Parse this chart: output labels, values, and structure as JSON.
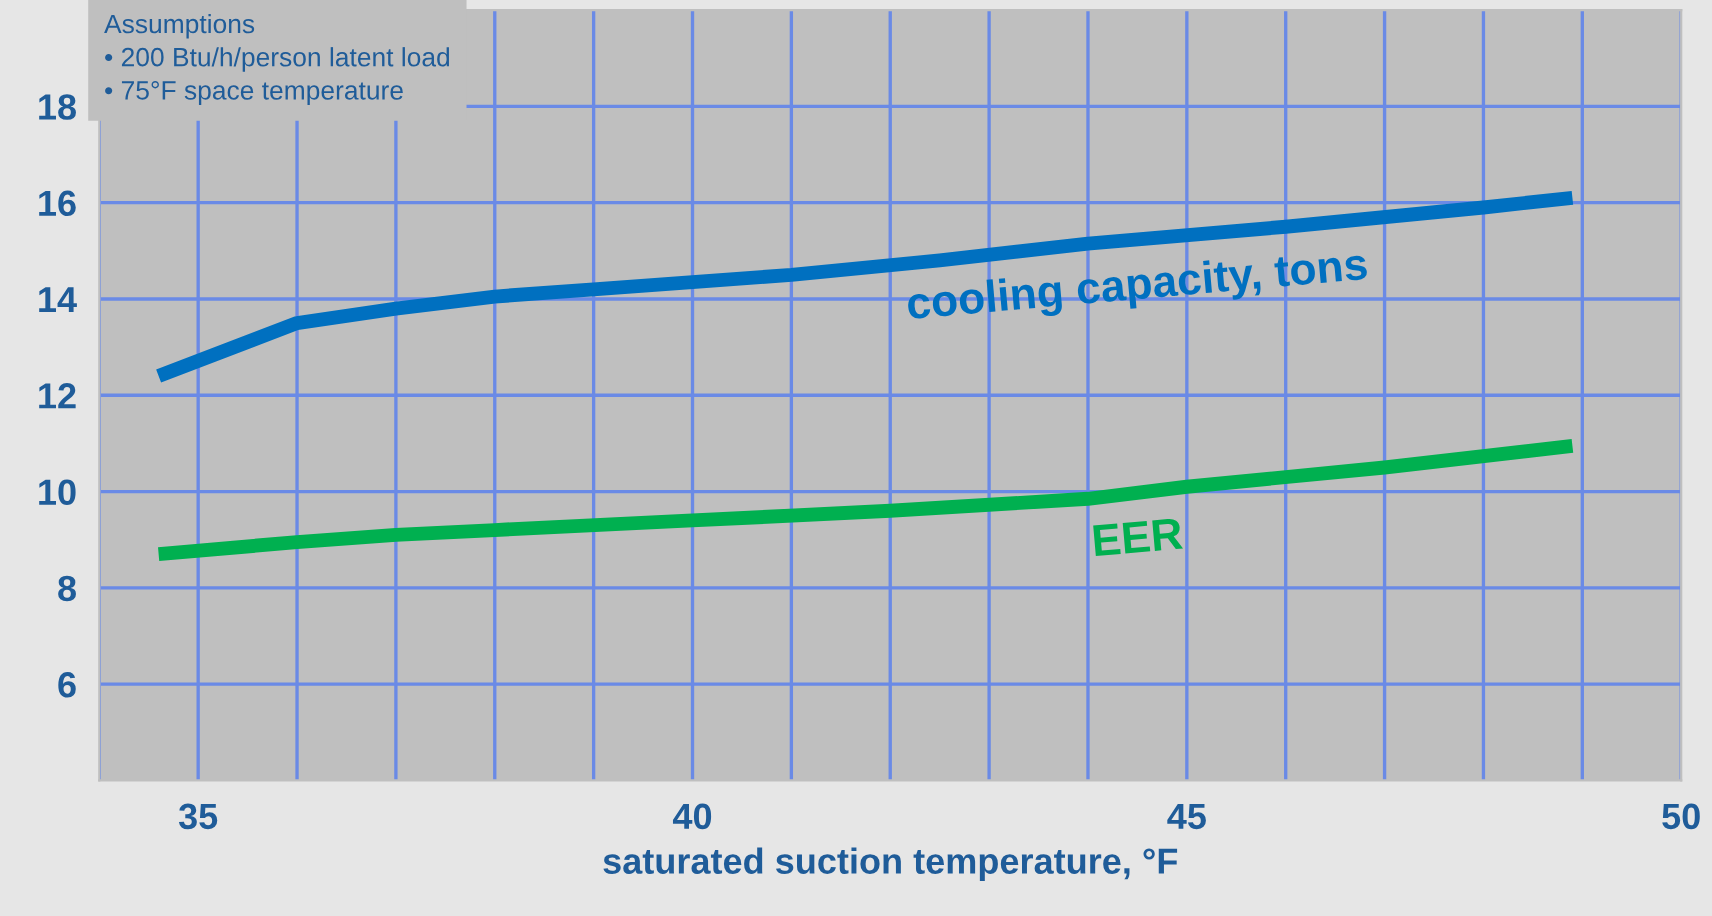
{
  "chart_data": {
    "type": "line",
    "xlabel": "saturated suction temperature, °F",
    "annotations": [
      "Assumptions",
      "• 200 Btu/h/person latent load",
      "• 75°F space temperature"
    ],
    "xlim": [
      34,
      50
    ],
    "ylim": [
      4,
      20
    ],
    "xticks": [
      {
        "value": 34,
        "label": null
      },
      35,
      {
        "value": 36,
        "label": null
      },
      {
        "value": 37,
        "label": null
      },
      {
        "value": 38,
        "label": null
      },
      {
        "value": 39,
        "label": null
      },
      40,
      {
        "value": 41,
        "label": null
      },
      {
        "value": 42,
        "label": null
      },
      {
        "value": 43,
        "label": null
      },
      {
        "value": 44,
        "label": null
      },
      45,
      {
        "value": 46,
        "label": null
      },
      {
        "value": 47,
        "label": null
      },
      {
        "value": 48,
        "label": null
      },
      {
        "value": 49,
        "label": null
      },
      50
    ],
    "yticks": [
      6,
      8,
      10,
      12,
      14,
      16,
      18
    ],
    "grid": true,
    "marker": "none",
    "line_style": "solid",
    "series": [
      {
        "name": "cooling capacity, tons",
        "color": "#0070c0",
        "x": [
          34.6,
          36,
          37,
          38,
          39,
          40,
          41,
          42.5,
          44,
          46,
          48,
          48.9
        ],
        "values": [
          12.4,
          13.5,
          13.8,
          14.05,
          14.2,
          14.35,
          14.5,
          14.8,
          15.15,
          15.5,
          15.9,
          16.1
        ]
      },
      {
        "name": "EER",
        "color": "#00b050",
        "x": [
          34.6,
          36,
          37,
          38,
          40,
          42,
          44,
          45,
          47,
          48.9
        ],
        "values": [
          8.7,
          8.95,
          9.1,
          9.2,
          9.4,
          9.6,
          9.85,
          10.1,
          10.5,
          10.95
        ]
      }
    ]
  }
}
